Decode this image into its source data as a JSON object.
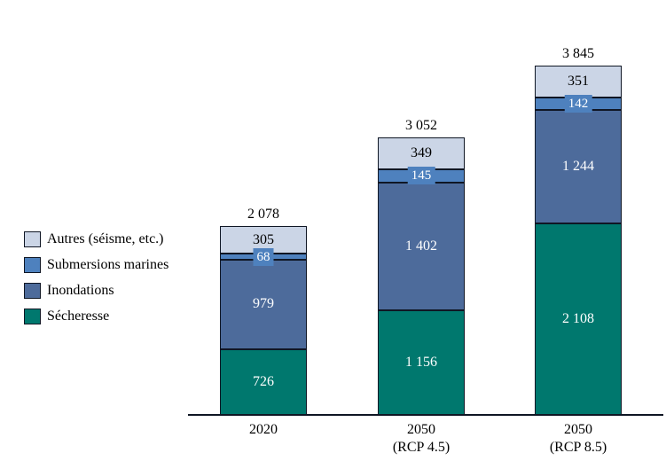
{
  "chart_data": {
    "type": "bar",
    "stacked": true,
    "title": "",
    "xlabel": "",
    "ylabel": "",
    "gridlines": false,
    "y_axis_visible": false,
    "number_format": "space-thousands",
    "categories": [
      "2020",
      "2050\n(RCP 4.5)",
      "2050\n(RCP 8.5)"
    ],
    "series": [
      {
        "key": "secheresse",
        "name": "Sécheresse",
        "color": "#00786E",
        "label_color": "#ffffff",
        "overflow_label": false,
        "values": [
          726,
          1156,
          2108
        ]
      },
      {
        "key": "inondations",
        "name": "Inondations",
        "color": "#4D6B9B",
        "label_color": "#ffffff",
        "overflow_label": false,
        "values": [
          979,
          1402,
          1244
        ]
      },
      {
        "key": "submersions-marines",
        "name": "Submersions marines",
        "color": "#4E81BE",
        "label_color": "#ffffff",
        "overflow_label": true,
        "values": [
          68,
          145,
          142
        ]
      },
      {
        "key": "autres",
        "name": "Autres (séisme, etc.)",
        "color": "#CBD5E6",
        "label_color": "#000000",
        "overflow_label": false,
        "values": [
          305,
          349,
          351
        ]
      }
    ],
    "totals": [
      2078,
      3052,
      3845
    ],
    "legend": {
      "position": "left",
      "items": [
        {
          "label": "Autres (séisme, etc.)",
          "color": "#CBD5E6"
        },
        {
          "label": "Submersions marines",
          "color": "#4E81BE"
        },
        {
          "label": "Inondations",
          "color": "#4D6B9B"
        },
        {
          "label": "Sécheresse",
          "color": "#00786E"
        }
      ]
    },
    "colors": {
      "axis_baseline": "#0f1624",
      "background": "#ffffff"
    }
  }
}
